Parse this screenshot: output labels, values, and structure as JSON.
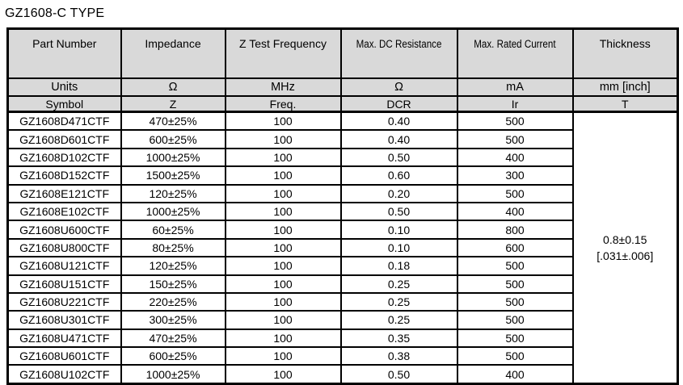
{
  "page_title": "GZ1608-C TYPE",
  "colors": {
    "header_bg": "#d9d9d9",
    "border": "#000000",
    "row_bg": "#ffffff",
    "text": "#000000"
  },
  "table": {
    "headers": [
      "Part Number",
      "Impedance",
      "Z Test Frequency",
      "Max. DC Resistance",
      "Max. Rated Current",
      "Thickness"
    ],
    "units_row": [
      "Units",
      "Ω",
      "MHz",
      "Ω",
      "mA",
      "mm [inch]"
    ],
    "symbol_row": [
      "Symbol",
      "Z",
      "Freq.",
      "DCR",
      "Ir",
      "T"
    ],
    "thickness_value": [
      "0.8±0.15",
      "[.031±.006]"
    ],
    "rows": [
      [
        "GZ1608D471CTF",
        "470±25%",
        "100",
        "0.40",
        "500"
      ],
      [
        "GZ1608D601CTF",
        "600±25%",
        "100",
        "0.40",
        "500"
      ],
      [
        "GZ1608D102CTF",
        "1000±25%",
        "100",
        "0.50",
        "400"
      ],
      [
        "GZ1608D152CTF",
        "1500±25%",
        "100",
        "0.60",
        "300"
      ],
      [
        "GZ1608E121CTF",
        "120±25%",
        "100",
        "0.20",
        "500"
      ],
      [
        "GZ1608E102CTF",
        "1000±25%",
        "100",
        "0.50",
        "400"
      ],
      [
        "GZ1608U600CTF",
        "60±25%",
        "100",
        "0.10",
        "800"
      ],
      [
        "GZ1608U800CTF",
        "80±25%",
        "100",
        "0.10",
        "600"
      ],
      [
        "GZ1608U121CTF",
        "120±25%",
        "100",
        "0.18",
        "500"
      ],
      [
        "GZ1608U151CTF",
        "150±25%",
        "100",
        "0.25",
        "500"
      ],
      [
        "GZ1608U221CTF",
        "220±25%",
        "100",
        "0.25",
        "500"
      ],
      [
        "GZ1608U301CTF",
        "300±25%",
        "100",
        "0.25",
        "500"
      ],
      [
        "GZ1608U471CTF",
        "470±25%",
        "100",
        "0.35",
        "500"
      ],
      [
        "GZ1608U601CTF",
        "600±25%",
        "100",
        "0.38",
        "500"
      ],
      [
        "GZ1608U102CTF",
        "1000±25%",
        "100",
        "0.50",
        "400"
      ]
    ]
  }
}
